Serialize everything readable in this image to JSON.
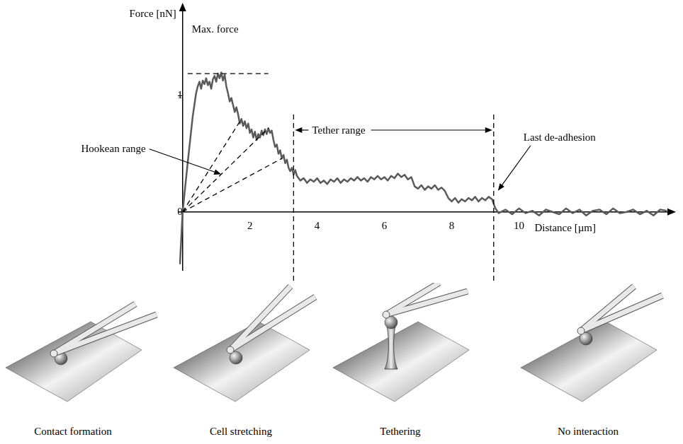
{
  "chart_data": {
    "type": "line",
    "x_label": "Distance [µm]",
    "y_label": "Force [nN]",
    "x": [
      -0.08,
      0,
      0.15,
      0.3,
      0.4,
      0.45,
      0.5,
      0.55,
      0.6,
      0.65,
      0.7,
      0.75,
      0.8,
      0.85,
      0.9,
      0.95,
      1.0,
      1.05,
      1.1,
      1.15,
      1.2,
      1.25,
      1.3,
      1.35,
      1.4,
      1.45,
      1.5,
      1.55,
      1.6,
      1.65,
      1.7,
      1.75,
      1.8,
      1.85,
      1.9,
      1.95,
      2.0,
      2.05,
      2.1,
      2.15,
      2.2,
      2.25,
      2.3,
      2.35,
      2.4,
      2.45,
      2.5,
      2.55,
      2.6,
      2.65,
      2.7,
      2.75,
      2.8,
      2.85,
      2.9,
      2.95,
      3.0,
      3.05,
      3.1,
      3.15,
      3.2,
      3.25,
      3.3,
      3.35,
      3.4,
      3.5,
      3.6,
      3.7,
      3.8,
      3.9,
      4.0,
      4.1,
      4.2,
      4.3,
      4.4,
      4.5,
      4.6,
      4.7,
      4.8,
      4.9,
      5.0,
      5.1,
      5.2,
      5.3,
      5.4,
      5.5,
      5.6,
      5.7,
      5.8,
      5.9,
      6.0,
      6.1,
      6.2,
      6.3,
      6.4,
      6.5,
      6.6,
      6.7,
      6.8,
      6.9,
      7.0,
      7.1,
      7.2,
      7.3,
      7.4,
      7.5,
      7.6,
      7.7,
      7.8,
      7.9,
      8.0,
      8.1,
      8.2,
      8.3,
      8.4,
      8.5,
      8.6,
      8.7,
      8.8,
      8.9,
      9.0,
      9.1,
      9.2,
      9.3,
      9.4,
      9.6,
      9.8,
      10.0,
      10.2,
      10.4,
      10.6,
      10.8,
      11.0,
      11.2,
      11.4,
      11.6,
      11.8,
      12.0,
      12.2,
      12.4,
      12.6,
      12.8,
      13.0,
      13.2,
      13.4,
      13.6,
      13.8,
      14.0,
      14.2,
      14.4
    ],
    "values": [
      -0.45,
      0,
      0.42,
      0.82,
      1.02,
      1.08,
      1.12,
      1.06,
      1.13,
      1.1,
      1.15,
      1.09,
      1.12,
      1.06,
      1.14,
      1.17,
      1.12,
      1.19,
      1.15,
      1.2,
      1.13,
      1.18,
      1.08,
      1.02,
      0.95,
      0.98,
      0.92,
      0.86,
      0.9,
      0.84,
      0.76,
      0.8,
      0.74,
      0.78,
      0.72,
      0.76,
      0.68,
      0.71,
      0.64,
      0.69,
      0.62,
      0.67,
      0.64,
      0.7,
      0.66,
      0.71,
      0.67,
      0.72,
      0.68,
      0.7,
      0.62,
      0.56,
      0.58,
      0.5,
      0.53,
      0.46,
      0.49,
      0.42,
      0.45,
      0.38,
      0.35,
      0.38,
      0.32,
      0.36,
      0.31,
      0.27,
      0.29,
      0.25,
      0.28,
      0.26,
      0.29,
      0.25,
      0.27,
      0.24,
      0.28,
      0.26,
      0.29,
      0.25,
      0.28,
      0.26,
      0.29,
      0.27,
      0.3,
      0.27,
      0.29,
      0.26,
      0.3,
      0.28,
      0.31,
      0.28,
      0.3,
      0.27,
      0.31,
      0.29,
      0.33,
      0.3,
      0.32,
      0.28,
      0.3,
      0.22,
      0.2,
      0.23,
      0.19,
      0.22,
      0.2,
      0.23,
      0.19,
      0.21,
      0.18,
      0.12,
      0.09,
      0.12,
      0.08,
      0.11,
      0.09,
      0.12,
      0.1,
      0.13,
      0.09,
      0.12,
      0.1,
      0.13,
      0.11,
      0.03,
      -0.01,
      0.02,
      -0.02,
      0.03,
      -0.01,
      0.01,
      -0.03,
      0.02,
      0,
      -0.02,
      0.03,
      -0.01,
      0.02,
      -0.03,
      0.01,
      0.02,
      -0.02,
      0.03,
      -0.01,
      0,
      0.02,
      -0.02,
      0.01,
      -0.03,
      0.02,
      0.01
    ],
    "color": "#5a5a5a",
    "xlim": [
      -0.1,
      14.5
    ],
    "xticks": [
      2,
      4,
      6,
      8,
      10
    ],
    "ylim": [
      -0.5,
      1.75
    ],
    "yticks": [
      0,
      1
    ],
    "grid": false,
    "max_force": {
      "label": "Max. force",
      "value": 1.19,
      "x": [
        0.15,
        2.55
      ]
    },
    "hookean_range": {
      "label": "Hookean range",
      "start": {
        "x": 0,
        "y": 0
      },
      "line_ends": [
        {
          "x": 1.75,
          "y": 0.8
        },
        {
          "x": 2.55,
          "y": 0.72
        },
        {
          "x": 2.95,
          "y": 0.46
        }
      ]
    },
    "tether_range": {
      "label": "Tether range",
      "x": [
        3.3,
        9.25
      ]
    },
    "last_de_adhesion": {
      "label": "Last de-adhesion",
      "x": 9.25
    }
  },
  "stages": [
    "Contact formation",
    "Cell stretching",
    "Tethering",
    "No interaction"
  ]
}
